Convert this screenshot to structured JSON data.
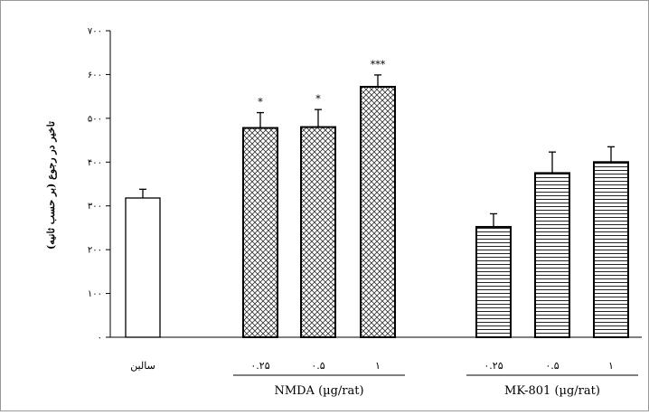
{
  "chart_data": {
    "type": "bar",
    "title": "",
    "xlabel": "",
    "ylabel": "تاخیر در رجوع (بر حسب ثانیه)",
    "ylim": [
      0,
      700
    ],
    "yticks": [
      0,
      100,
      200,
      300,
      400,
      500,
      600,
      700
    ],
    "ytick_labels": [
      "۰",
      "۱۰۰",
      "۲۰۰",
      "۳۰۰",
      "۴۰۰",
      "۵۰۰",
      "۶۰۰",
      "۷۰۰"
    ],
    "grid": false,
    "legend": "none",
    "categories": [
      "سالین",
      "۰.۲۵",
      "۰.۵",
      "۱",
      "۰.۲۵",
      "۰.۵",
      "۱"
    ],
    "values": [
      318,
      478,
      480,
      572,
      252,
      375,
      400
    ],
    "errors": [
      20,
      35,
      40,
      27,
      30,
      48,
      35
    ],
    "significance": [
      "",
      "*",
      "*",
      "***",
      "",
      "",
      ""
    ],
    "bar_patterns": [
      "none",
      "crosshatch",
      "crosshatch",
      "crosshatch",
      "horizontal-lines",
      "horizontal-lines",
      "horizontal-lines"
    ],
    "groups": [
      {
        "label": "NMDA (µg/rat)",
        "members": [
          1,
          2,
          3
        ]
      },
      {
        "label": "MK-801 (µg/rat)",
        "members": [
          4,
          5,
          6
        ]
      }
    ]
  }
}
